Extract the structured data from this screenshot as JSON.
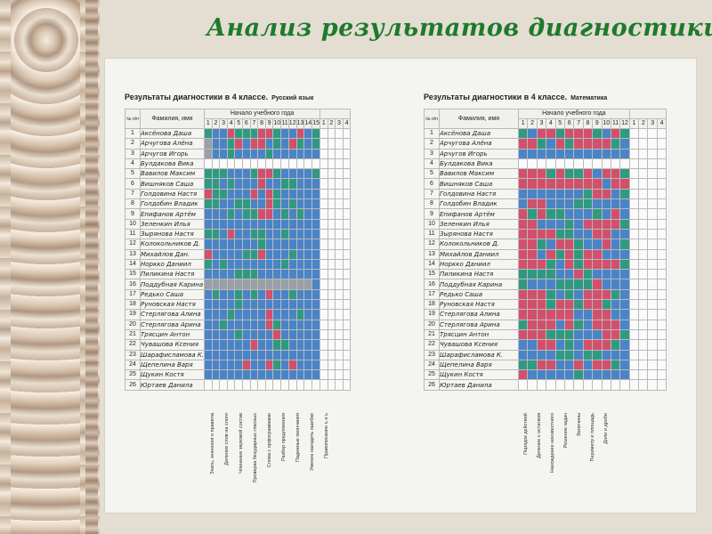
{
  "title": "Анализ результатов диагностики",
  "russian": {
    "heading": "Результаты диагностики в 4 классе.",
    "subject": "Русский язык",
    "col_no": "№ п/п",
    "col_name": "Фамилия, имя",
    "group_label": "Начало учебного года",
    "columns": [
      "1",
      "2",
      "3",
      "4",
      "5",
      "6",
      "7",
      "8",
      "9",
      "10",
      "11",
      "12",
      "13",
      "14",
      "15",
      "1",
      "2",
      "3",
      "4"
    ],
    "notes": [
      "Знать, значения и правила",
      "Деление слов на слоги",
      "Членение звуковой состав",
      "Проверка безударных гласных",
      "Слова с орфограммами",
      "Разбор предложения",
      "Падежные окончания",
      "Умение находить ошибки",
      "Правописание ъ и ь"
    ]
  },
  "math": {
    "heading": "Результаты диагностики в 4 классе.",
    "subject": "Математика",
    "col_no": "№ п/п",
    "col_name": "Фамилия, имя",
    "group_label": "Начало учебного года",
    "columns": [
      "1",
      "2",
      "3",
      "4",
      "5",
      "6",
      "7",
      "8",
      "9",
      "10",
      "11",
      "12",
      "1",
      "2",
      "3",
      "4"
    ],
    "notes": [
      "Порядок действий",
      "Деление с остатком",
      "Нахождение неизвестного",
      "Решение задач",
      "Величины",
      "Периметр и площадь",
      "Доли и дроби"
    ]
  },
  "students": [
    {
      "n": "1",
      "name": "Аксёнова Даша",
      "nameR": "Аксёнова Даша"
    },
    {
      "n": "2",
      "name": "Арчугова Алёна",
      "nameR": "Арчугова Алёна"
    },
    {
      "n": "3",
      "name": "Арчугов Игорь",
      "nameR": "Арчугов Игорь"
    },
    {
      "n": "4",
      "name": "Булдакова Вика",
      "nameR": "Булдакова Вика"
    },
    {
      "n": "5",
      "name": "Вавилов Максим",
      "nameR": "Вавилов Максим"
    },
    {
      "n": "6",
      "name": "Вишняков Саша",
      "nameR": "Вишняков Саша"
    },
    {
      "n": "7",
      "name": "Голдовина Настя",
      "nameR": "Голдовина Настя"
    },
    {
      "n": "8",
      "name": "Голдобин Владик",
      "nameR": "Голдобин Владик"
    },
    {
      "n": "9",
      "name": "Епифанов Артём",
      "nameR": "Епифанов Артём"
    },
    {
      "n": "10",
      "name": "Зеленкин Илья",
      "nameR": "Зеленкин Илья"
    },
    {
      "n": "11",
      "name": "Зырянова Настя",
      "nameR": "Зырянова Настя"
    },
    {
      "n": "12",
      "name": "Колокольников Д.",
      "nameR": "Колокольников Д."
    },
    {
      "n": "13",
      "name": "Михайлов Даниил",
      "nameR": "Михайлов Дан."
    },
    {
      "n": "14",
      "name": "Норкко Даниил",
      "nameR": "Норкко Даниил"
    },
    {
      "n": "15",
      "name": "Пиликина Настя",
      "nameR": "Пиликина Настя"
    },
    {
      "n": "16",
      "name": "Поддубная Карина",
      "nameR": "Поддубная Карина"
    },
    {
      "n": "17",
      "name": "Редько Саша",
      "nameR": "Редько Саша"
    },
    {
      "n": "18",
      "name": "Руновская Настя",
      "nameR": "Руновская Настя"
    },
    {
      "n": "19",
      "name": "Стерлягова Алина",
      "nameR": "Стерлягова Алина"
    },
    {
      "n": "20",
      "name": "Стерлягова Арина",
      "nameR": "Стерлягова Арина"
    },
    {
      "n": "21",
      "name": "Трясцин Антон",
      "nameR": "Трясцин Антон"
    },
    {
      "n": "22",
      "name": "Чувашова Ксения",
      "nameR": "Чувашова Ксения"
    },
    {
      "n": "23",
      "name": "Шарафисламова К.",
      "nameR": "Шарафисламова К."
    },
    {
      "n": "24",
      "name": "Щепелина Варя",
      "nameR": "Щепелина Варя"
    },
    {
      "n": "25",
      "name": "Щукин Костя",
      "nameR": "Щукин Костя"
    },
    {
      "n": "26",
      "name": "Юртаев Данила",
      "nameR": "Юртаев Данила"
    }
  ],
  "russian_cells": [
    "gbbrgggrrgbbrbg",
    "ybbgrbrrbgbrgbg",
    "ybbgbbbbgbbbbbb",
    "wwwwwwwwwwwwwww",
    "gggbbbgrrgbbbbg",
    "ggbgbbbrbbggbbb",
    "rggbbbrbrgbbbbb",
    "ggbbggbbrgbgbbb",
    "bbbgbggrrbgbgbb",
    "bbbbbbbbbbbbbbb",
    "ggbrbbggbbgbbbb",
    "bbbbbbbgbbbbbbb",
    "rbbbbggrbbbgbbb",
    "gbgbbbbbbbgbbbb",
    "bbbbgggbbbbbbbb",
    "yyyyyyyyyyyyyyb",
    "bgbbgbgbrbbgbbb",
    "bbbbgbbbbbbbbbb",
    "bbbgbbbbrbbbgbb",
    "bbgbbbbbrgbbbbb",
    "bbbbgbbbbrbbbbb",
    "bbbbbbrbbggbbbb",
    "bbbbbbbbbbbbbbb",
    "bbbbbrbbrgbrbbb",
    "bbbbbbbbbbbbbbb",
    "wwwwwwwwwwwwwww"
  ],
  "math_cells": [
    "gbrrgrrrgbrg",
    "rrgbrgrrrrgb",
    "bbbbbbbbbbbb",
    "wwwwwwwwwwww",
    "rrrgrggrbrrg",
    "rrrrrrrrrbrr",
    "bbbbbbbgrrbg",
    "brrbbbggbbbb",
    "rgrggbbbgbrb",
    "rrbbbgbrrrrg",
    "rrrrggbbrrbb",
    "rrgbrrgbbrbg",
    "rrbrgrgrrbbb",
    "rrrgbrgrrrrg",
    "ggggbbrgbbbb",
    "gbbbggggrbbb",
    "rrrgbgbrrrgb",
    "rrrgrrgrrgbb",
    "rrrrrrbbrrbb",
    "grrrbrgbrrrb",
    "rrrgggbbbrrg",
    "bbrrbgbrrrgb",
    "bbbbggbggbbb",
    "ggrrbbrbrrgb",
    "rbbbbbgbbbbb",
    "wwwwwwwwwwww"
  ]
}
